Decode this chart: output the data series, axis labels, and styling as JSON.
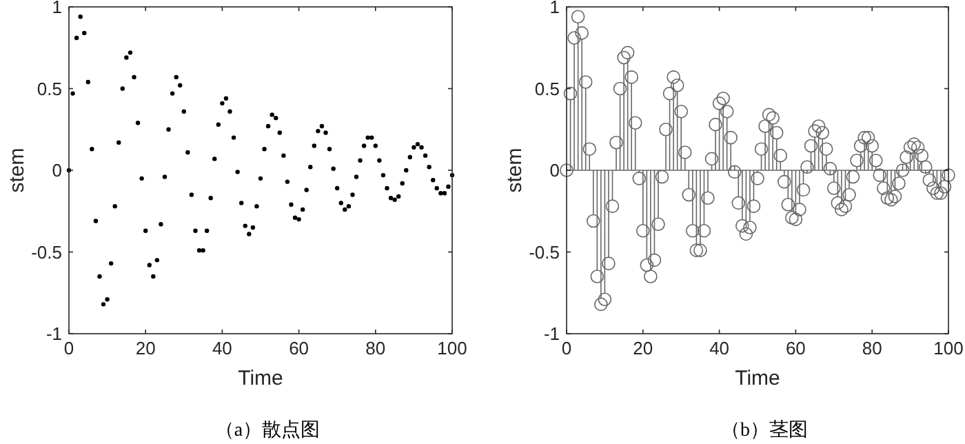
{
  "chart_data": [
    {
      "type": "scatter",
      "title": "（a）散点图",
      "xlabel": "Time",
      "ylabel": "stem",
      "color": "#000000",
      "marker": "circle",
      "xlim": [
        0,
        100
      ],
      "ylim": [
        -1,
        1
      ],
      "xticks": [
        0,
        20,
        40,
        60,
        80,
        100
      ],
      "yticks": [
        -1,
        -0.5,
        0,
        0.5,
        1
      ],
      "x": [
        0,
        1,
        2,
        3,
        4,
        5,
        6,
        7,
        8,
        9,
        10,
        11,
        12,
        13,
        14,
        15,
        16,
        17,
        18,
        19,
        20,
        21,
        22,
        23,
        24,
        25,
        26,
        27,
        28,
        29,
        30,
        31,
        32,
        33,
        34,
        35,
        36,
        37,
        38,
        39,
        40,
        41,
        42,
        43,
        44,
        45,
        46,
        47,
        48,
        49,
        50,
        51,
        52,
        53,
        54,
        55,
        56,
        57,
        58,
        59,
        60,
        61,
        62,
        63,
        64,
        65,
        66,
        67,
        68,
        69,
        70,
        71,
        72,
        73,
        74,
        75,
        76,
        77,
        78,
        79,
        80,
        81,
        82,
        83,
        84,
        85,
        86,
        87,
        88,
        89,
        90,
        91,
        92,
        93,
        94,
        95,
        96,
        97,
        98,
        99,
        100
      ],
      "values": [
        0,
        0.47,
        0.81,
        0.94,
        0.84,
        0.54,
        0.13,
        -0.31,
        -0.65,
        -0.82,
        -0.79,
        -0.57,
        -0.22,
        0.17,
        0.5,
        0.69,
        0.72,
        0.57,
        0.29,
        -0.05,
        -0.37,
        -0.58,
        -0.65,
        -0.55,
        -0.33,
        -0.04,
        0.25,
        0.47,
        0.57,
        0.52,
        0.36,
        0.11,
        -0.15,
        -0.37,
        -0.49,
        -0.49,
        -0.37,
        -0.17,
        0.07,
        0.28,
        0.41,
        0.44,
        0.36,
        0.2,
        -0.01,
        -0.2,
        -0.34,
        -0.39,
        -0.35,
        -0.22,
        -0.05,
        0.13,
        0.27,
        0.34,
        0.32,
        0.23,
        0.09,
        -0.07,
        -0.21,
        -0.29,
        -0.3,
        -0.24,
        -0.12,
        0.02,
        0.15,
        0.24,
        0.27,
        0.23,
        0.13,
        0.01,
        -0.11,
        -0.2,
        -0.24,
        -0.22,
        -0.15,
        -0.04,
        0.06,
        0.15,
        0.2,
        0.2,
        0.15,
        0.06,
        -0.03,
        -0.11,
        -0.17,
        -0.18,
        -0.16,
        -0.08,
        0,
        0.08,
        0.14,
        0.16,
        0.14,
        0.09,
        0.02,
        -0.06,
        -0.11,
        -0.14,
        -0.14,
        -0.1,
        -0.03
      ]
    },
    {
      "type": "lollipop",
      "title": "（b）茎图",
      "xlabel": "Time",
      "ylabel": "stem",
      "color": "#666666",
      "marker": "circle",
      "xlim": [
        0,
        100
      ],
      "ylim": [
        -1,
        1
      ],
      "xticks": [
        0,
        20,
        40,
        60,
        80,
        100
      ],
      "yticks": [
        -1,
        -0.5,
        0,
        0.5,
        1
      ],
      "x": [
        0,
        1,
        2,
        3,
        4,
        5,
        6,
        7,
        8,
        9,
        10,
        11,
        12,
        13,
        14,
        15,
        16,
        17,
        18,
        19,
        20,
        21,
        22,
        23,
        24,
        25,
        26,
        27,
        28,
        29,
        30,
        31,
        32,
        33,
        34,
        35,
        36,
        37,
        38,
        39,
        40,
        41,
        42,
        43,
        44,
        45,
        46,
        47,
        48,
        49,
        50,
        51,
        52,
        53,
        54,
        55,
        56,
        57,
        58,
        59,
        60,
        61,
        62,
        63,
        64,
        65,
        66,
        67,
        68,
        69,
        70,
        71,
        72,
        73,
        74,
        75,
        76,
        77,
        78,
        79,
        80,
        81,
        82,
        83,
        84,
        85,
        86,
        87,
        88,
        89,
        90,
        91,
        92,
        93,
        94,
        95,
        96,
        97,
        98,
        99,
        100
      ],
      "values": [
        0,
        0.47,
        0.81,
        0.94,
        0.84,
        0.54,
        0.13,
        -0.31,
        -0.65,
        -0.82,
        -0.79,
        -0.57,
        -0.22,
        0.17,
        0.5,
        0.69,
        0.72,
        0.57,
        0.29,
        -0.05,
        -0.37,
        -0.58,
        -0.65,
        -0.55,
        -0.33,
        -0.04,
        0.25,
        0.47,
        0.57,
        0.52,
        0.36,
        0.11,
        -0.15,
        -0.37,
        -0.49,
        -0.49,
        -0.37,
        -0.17,
        0.07,
        0.28,
        0.41,
        0.44,
        0.36,
        0.2,
        -0.01,
        -0.2,
        -0.34,
        -0.39,
        -0.35,
        -0.22,
        -0.05,
        0.13,
        0.27,
        0.34,
        0.32,
        0.23,
        0.09,
        -0.07,
        -0.21,
        -0.29,
        -0.3,
        -0.24,
        -0.12,
        0.02,
        0.15,
        0.24,
        0.27,
        0.23,
        0.13,
        0.01,
        -0.11,
        -0.2,
        -0.24,
        -0.22,
        -0.15,
        -0.04,
        0.06,
        0.15,
        0.2,
        0.2,
        0.15,
        0.06,
        -0.03,
        -0.11,
        -0.17,
        -0.18,
        -0.16,
        -0.08,
        0,
        0.08,
        0.14,
        0.16,
        0.14,
        0.09,
        0.02,
        -0.06,
        -0.11,
        -0.14,
        -0.14,
        -0.1,
        -0.03
      ]
    }
  ]
}
